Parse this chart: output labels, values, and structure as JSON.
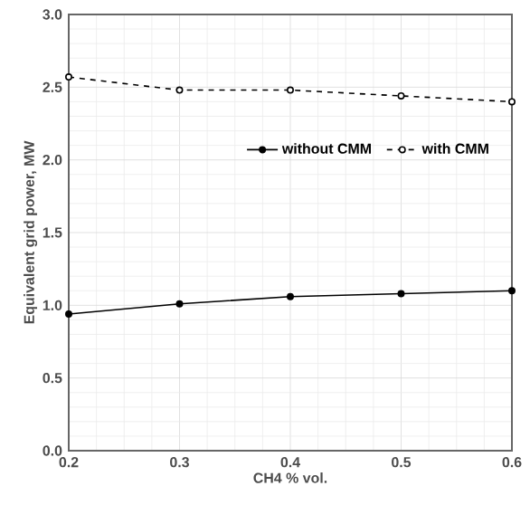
{
  "chart_data": {
    "type": "line",
    "xlabel": "CH4 % vol.",
    "ylabel": "Equivalent grid power, MW",
    "x": [
      0.2,
      0.3,
      0.4,
      0.5,
      0.6
    ],
    "series": [
      {
        "name": "without CMM",
        "color": "#000000",
        "values": [
          0.94,
          1.01,
          1.06,
          1.08,
          1.1
        ],
        "line_style": "solid",
        "marker": "circle"
      },
      {
        "name": "with CMM",
        "color": "#000000",
        "values": [
          2.57,
          2.48,
          2.48,
          2.44,
          2.4
        ],
        "line_style": "dashed",
        "marker": "circle"
      }
    ],
    "xlim": [
      0.2,
      0.6
    ],
    "xticks": [
      {
        "value": 0.2,
        "label": "0.2"
      },
      {
        "value": 0.3,
        "label": "0.3"
      },
      {
        "value": 0.4,
        "label": "0.4"
      },
      {
        "value": 0.5,
        "label": "0.5"
      },
      {
        "value": 0.6,
        "label": "0.6"
      }
    ],
    "ylim": [
      0,
      3
    ],
    "yticks": [
      {
        "value": 0,
        "label": "0.0"
      },
      {
        "value": 0.5,
        "label": "0.5"
      },
      {
        "value": 1,
        "label": "1.0"
      },
      {
        "value": 1.5,
        "label": "1.5"
      },
      {
        "value": 2,
        "label": "2.0"
      },
      {
        "value": 2.5,
        "label": "2.5"
      },
      {
        "value": 3,
        "label": "3.0"
      }
    ],
    "grid": true,
    "legend": "right"
  }
}
